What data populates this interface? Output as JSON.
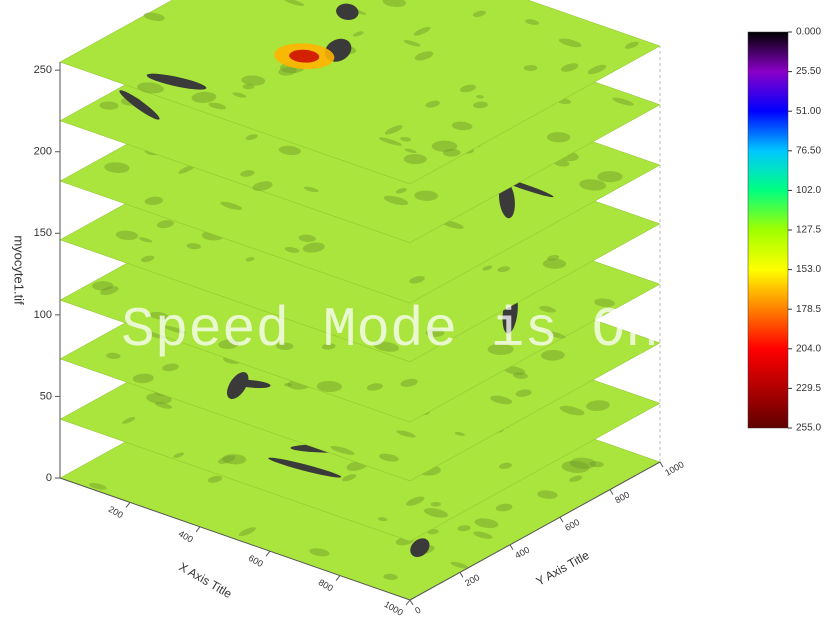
{
  "chart_data": {
    "type": "stacked-contour",
    "watermark": "Speed Mode is On",
    "xlabel": "X Axis Title",
    "ylabel": "Y Axis Title",
    "zlabel": "myocyte1.tif",
    "xlim": [
      0,
      1000
    ],
    "xticks": [
      200,
      400,
      600,
      800,
      1000
    ],
    "ylim": [
      0,
      1000
    ],
    "yticks": [
      0,
      200,
      400,
      600,
      800,
      1000
    ],
    "zlim": [
      0,
      255
    ],
    "zticks": [
      0,
      50,
      100,
      150,
      200,
      250
    ],
    "layers": [
      0,
      36,
      73,
      109,
      146,
      182,
      219,
      255
    ],
    "layer_color": "#a9e53c",
    "colorbar": {
      "lim": [
        0,
        255
      ],
      "colors": [
        "#000000",
        "#8a00c8",
        "#0000ff",
        "#00c8ff",
        "#00ff80",
        "#a0ff00",
        "#ffff00",
        "#ff8000",
        "#ff0000",
        "#b00000",
        "#600000"
      ],
      "ticks": [
        {
          "value": 0,
          "label": "0.000"
        },
        {
          "value": 25.5,
          "label": "25.50"
        },
        {
          "value": 51,
          "label": "51.00"
        },
        {
          "value": 76.5,
          "label": "76.50"
        },
        {
          "value": 102,
          "label": "102.0"
        },
        {
          "value": 127.5,
          "label": "127.5"
        },
        {
          "value": 153,
          "label": "153.0"
        },
        {
          "value": 178.5,
          "label": "178.5"
        },
        {
          "value": 204,
          "label": "204.0"
        },
        {
          "value": 229.5,
          "label": "229.5"
        },
        {
          "value": 255,
          "label": "255.0"
        }
      ]
    }
  }
}
